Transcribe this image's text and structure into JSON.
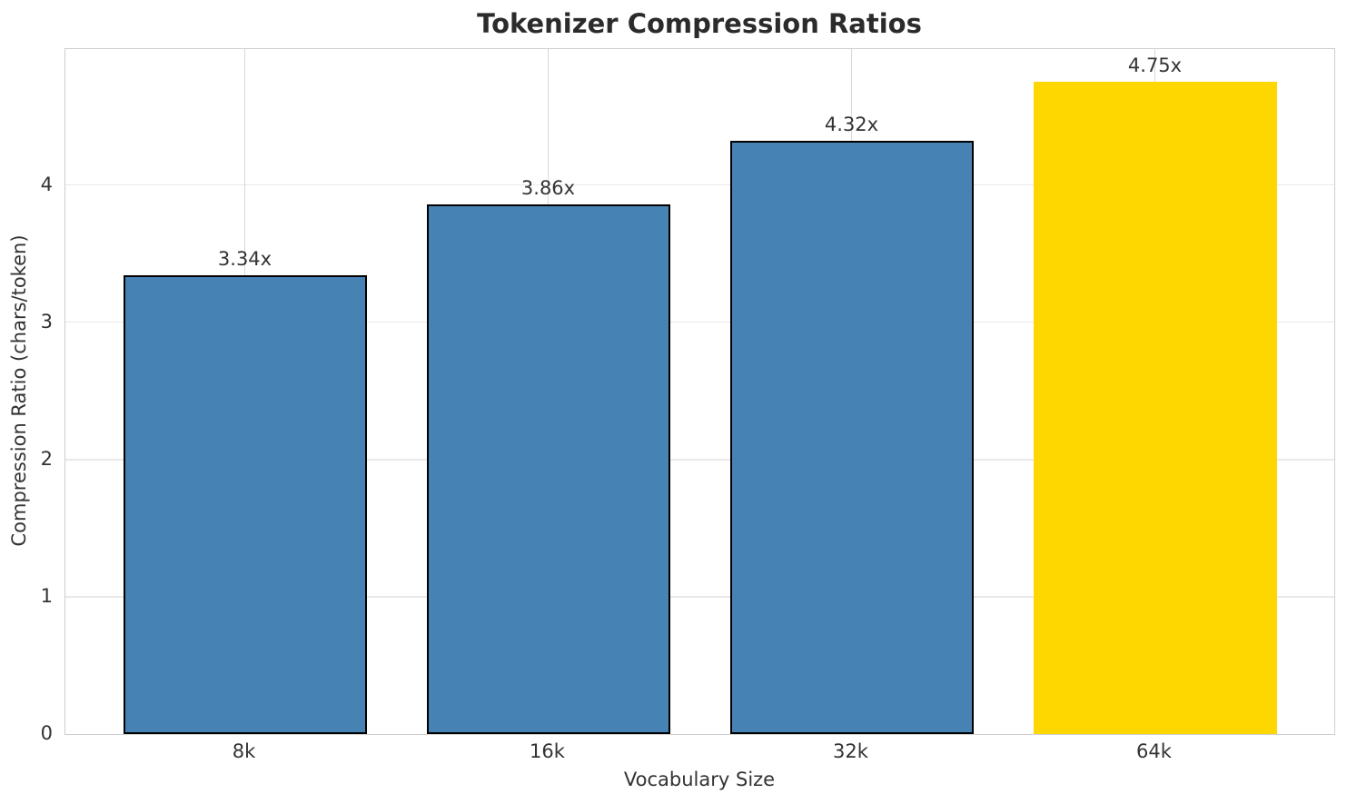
{
  "chart_data": {
    "type": "bar",
    "title": "Tokenizer Compression Ratios",
    "xlabel": "Vocabulary Size",
    "ylabel": "Compression Ratio (chars/token)",
    "categories": [
      "8k",
      "16k",
      "32k",
      "64k"
    ],
    "values": [
      3.34,
      3.86,
      4.32,
      4.75
    ],
    "bar_labels": [
      "3.34x",
      "3.86x",
      "4.32x",
      "4.75x"
    ],
    "yticks": [
      "0",
      "1",
      "2",
      "3",
      "4"
    ],
    "ytick_values": [
      0,
      1,
      2,
      3,
      4
    ],
    "ylim": [
      0,
      4.99
    ],
    "grid": true,
    "legend": false,
    "highlight_index": 3,
    "colors": {
      "bar": "#4682b4",
      "highlight_bar": "#ffd700",
      "bar_edge": "#000000",
      "title_text": "#2b2b2b",
      "axis_text": "#333333",
      "spine": "#cfcfcf",
      "hgrid": "#e9e9e9",
      "vgrid": "#d8d8d8"
    }
  }
}
